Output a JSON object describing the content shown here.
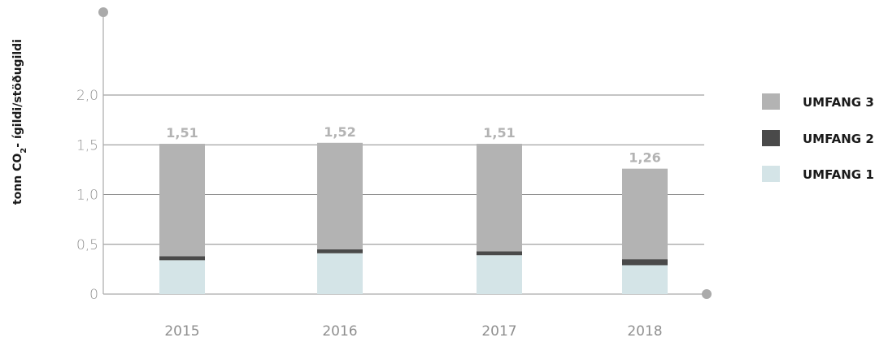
{
  "chart_data": {
    "type": "bar",
    "stacked": true,
    "categories": [
      "2015",
      "2016",
      "2017",
      "2018"
    ],
    "series": [
      {
        "name": "UMFANG 1",
        "values": [
          0.34,
          0.41,
          0.39,
          0.29
        ],
        "color": "#d4e4e7"
      },
      {
        "name": "UMFANG 2",
        "values": [
          0.04,
          0.04,
          0.04,
          0.06
        ],
        "color": "#4a4a4a"
      },
      {
        "name": "UMFANG 3",
        "values": [
          1.13,
          1.07,
          1.08,
          0.91
        ],
        "color": "#b3b3b3"
      }
    ],
    "totals": [
      "1,51",
      "1,52",
      "1,51",
      "1,26"
    ],
    "ylabel_main": "tonn CO",
    "ylabel_sub": "2",
    "ylabel_rest": "- ígildi/stöðugildi",
    "ylim": [
      0,
      2.0
    ],
    "yticks": [
      {
        "value": 0,
        "label": "0"
      },
      {
        "value": 0.5,
        "label": "0,5"
      },
      {
        "value": 1.0,
        "label": "1,0"
      },
      {
        "value": 1.5,
        "label": "1,5"
      },
      {
        "value": 2.0,
        "label": "2,0"
      }
    ],
    "legend_order": [
      "UMFANG 3",
      "UMFANG 2",
      "UMFANG 1"
    ],
    "legend_position": "right",
    "grid": true,
    "axis_color": "#aaaaaa"
  }
}
